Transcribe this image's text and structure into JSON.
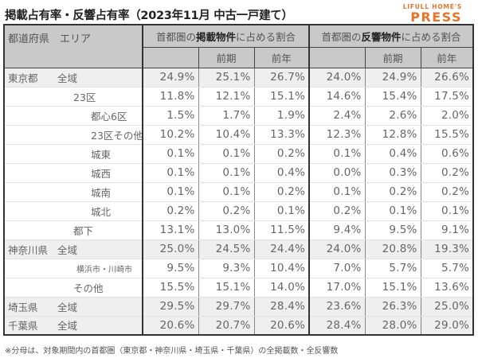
{
  "title": "掲載占有率・反響占有率（2023年11月 中古一戸建て）",
  "logo": {
    "line1": "LIFULL HOME'S",
    "line2": "PRESS",
    "color": "#e8732a"
  },
  "header": {
    "corner": "都道府県　エリア",
    "group1_pre": "首都圏の",
    "group1_bold": "掲載物件",
    "group1_post": "に占める割合",
    "group2_pre": "首都圏の",
    "group2_bold": "反響物件",
    "group2_post": "に占める割合",
    "sub_prev_period": "前期",
    "sub_prev_year": "前年"
  },
  "rows": [
    {
      "pref": "東京都",
      "area": "全域",
      "level": 0,
      "values": [
        "24.9%",
        "25.1%",
        "26.7%",
        "24.0%",
        "24.9%",
        "26.6%"
      ]
    },
    {
      "pref": "",
      "area": "23区",
      "level": 1,
      "values": [
        "11.8%",
        "12.1%",
        "15.1%",
        "14.6%",
        "15.4%",
        "17.5%"
      ]
    },
    {
      "pref": "",
      "area": "都心6区",
      "level": 2,
      "values": [
        "1.5%",
        "1.7%",
        "1.9%",
        "2.4%",
        "2.6%",
        "2.0%"
      ]
    },
    {
      "pref": "",
      "area": "23区その他",
      "level": 2,
      "values": [
        "10.2%",
        "10.4%",
        "13.3%",
        "12.3%",
        "12.8%",
        "15.5%"
      ]
    },
    {
      "pref": "",
      "area": "城東",
      "level": 2,
      "values": [
        "0.1%",
        "0.1%",
        "0.2%",
        "0.1%",
        "0.4%",
        "0.6%"
      ]
    },
    {
      "pref": "",
      "area": "城西",
      "level": 2,
      "values": [
        "0.1%",
        "0.1%",
        "0.4%",
        "0.0%",
        "0.3%",
        "0.2%"
      ]
    },
    {
      "pref": "",
      "area": "城南",
      "level": 2,
      "values": [
        "0.1%",
        "0.1%",
        "0.2%",
        "0.1%",
        "0.2%",
        "0.2%"
      ]
    },
    {
      "pref": "",
      "area": "城北",
      "level": 2,
      "values": [
        "0.2%",
        "0.2%",
        "0.1%",
        "0.2%",
        "0.1%",
        "0.1%"
      ]
    },
    {
      "pref": "",
      "area": "都下",
      "level": 1,
      "values": [
        "13.1%",
        "13.0%",
        "11.5%",
        "9.4%",
        "9.5%",
        "9.1%"
      ]
    },
    {
      "pref": "神奈川県",
      "area": "全域",
      "level": 0,
      "values": [
        "25.0%",
        "24.5%",
        "24.4%",
        "24.0%",
        "20.8%",
        "19.3%"
      ]
    },
    {
      "pref": "",
      "area": "横浜市・川崎市",
      "level": 3,
      "values": [
        "9.5%",
        "9.3%",
        "10.4%",
        "7.0%",
        "5.7%",
        "5.7%"
      ]
    },
    {
      "pref": "",
      "area": "その他",
      "level": 1,
      "values": [
        "15.5%",
        "15.1%",
        "14.0%",
        "17.0%",
        "15.1%",
        "13.6%"
      ]
    },
    {
      "pref": "埼玉県",
      "area": "全域",
      "level": 0,
      "values": [
        "29.5%",
        "29.7%",
        "28.4%",
        "23.6%",
        "26.3%",
        "25.0%"
      ]
    },
    {
      "pref": "千葉県",
      "area": "全域",
      "level": 0,
      "values": [
        "20.6%",
        "20.7%",
        "20.6%",
        "28.4%",
        "28.0%",
        "29.0%"
      ]
    }
  ],
  "note": "※分母は、対象期間内の首都圏（東京都・神奈川県・埼玉県・千葉県）の全掲載数・全反響数"
}
